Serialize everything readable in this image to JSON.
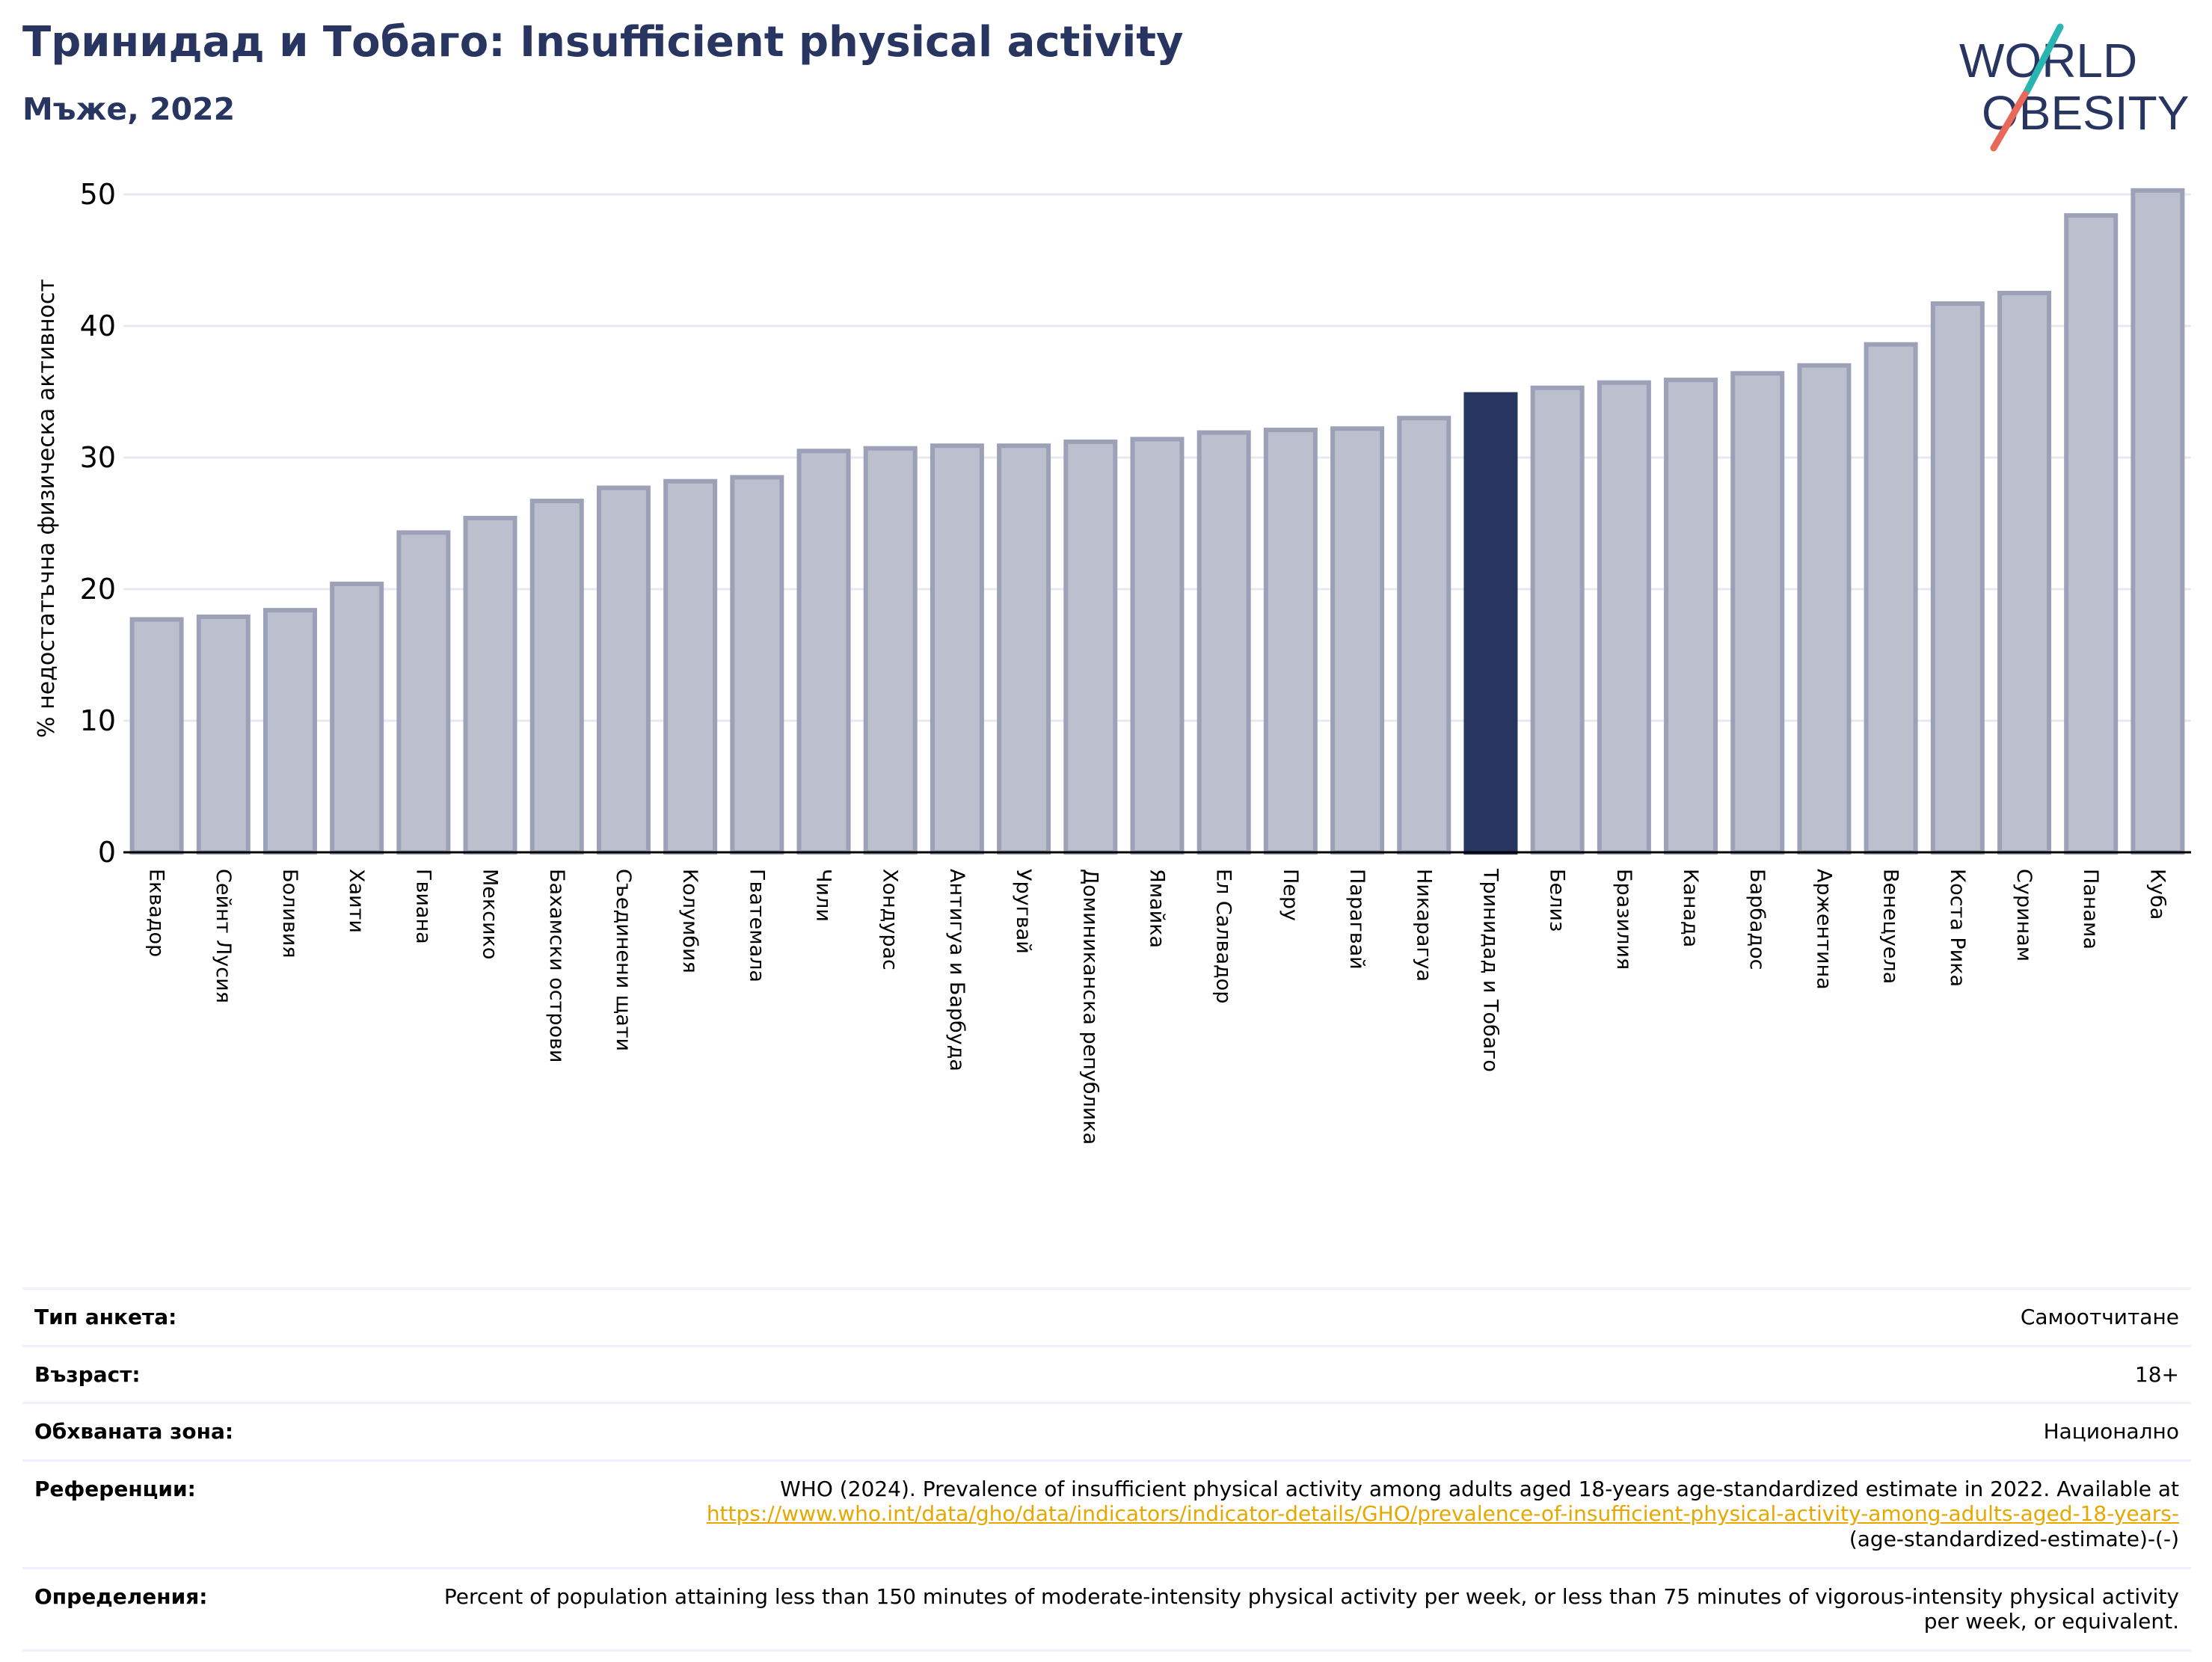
{
  "header": {
    "title": "Тринидад и Тобаго: Insufficient physical activity",
    "subtitle": "Мъже, 2022"
  },
  "logo": {
    "line1": "WORLD",
    "line2": "OBESITY"
  },
  "colors": {
    "bar": "#bcbfcd",
    "bar_edge": "#9ca1b8",
    "highlight": "#283560",
    "title": "#283560"
  },
  "chart_data": {
    "type": "bar",
    "ylabel": "% недостатъчна физическа активност",
    "ylim": [
      0,
      52
    ],
    "yticks": [
      0,
      10,
      20,
      30,
      40,
      50
    ],
    "grid": true,
    "highlight": "Тринидад и Тобаго",
    "categories": [
      "Еквадор",
      "Сейнт Лусия",
      "Боливия",
      "Хаити",
      "Гвиана",
      "Мексико",
      "Бахамски острови",
      "Съединени щати",
      "Колумбия",
      "Гватемала",
      "Чили",
      "Хондурас",
      "Антигуа и Барбуда",
      "Уругвай",
      "Доминиканска република",
      "Ямайка",
      "Ел Салвадор",
      "Перу",
      "Парагвай",
      "Никарагуа",
      "Тринидад и Тобаго",
      "Белиз",
      "Бразилия",
      "Канада",
      "Барбадос",
      "Аржентина",
      "Венецуела",
      "Коста Рика",
      "Суринам",
      "Панама",
      "Куба"
    ],
    "values": [
      17.7,
      17.9,
      18.4,
      20.4,
      24.3,
      25.4,
      26.7,
      27.7,
      28.2,
      28.5,
      30.5,
      30.7,
      30.9,
      30.9,
      31.2,
      31.4,
      31.9,
      32.1,
      32.2,
      33.0,
      34.8,
      35.3,
      35.7,
      35.9,
      36.4,
      37.0,
      38.6,
      41.7,
      42.5,
      48.4,
      50.3
    ]
  },
  "info": {
    "survey_label": "Тип анкета:",
    "survey_value": "Самоотчитане",
    "age_label": "Възраст:",
    "age_value": "18+",
    "area_label": "Обхваната зона:",
    "area_value": "Национално",
    "ref_label": "Референции:",
    "ref_text": "WHO (2024). Prevalence of insufficient physical activity among adults aged 18-years age-standardized estimate in 2022. Available at",
    "ref_link": "https://www.who.int/data/gho/data/indicators/indicator-details/GHO/prevalence-of-insufficient-physical-activity-among-adults-aged-18-years-",
    "ref_tail": "(age-standardized-estimate)-(-)",
    "def_label": "Определения:",
    "def_value": "Percent of population attaining less than 150 minutes of moderate-intensity physical activity per week, or less than 75 minutes of vigorous-intensity physical activity per week, or equivalent."
  }
}
